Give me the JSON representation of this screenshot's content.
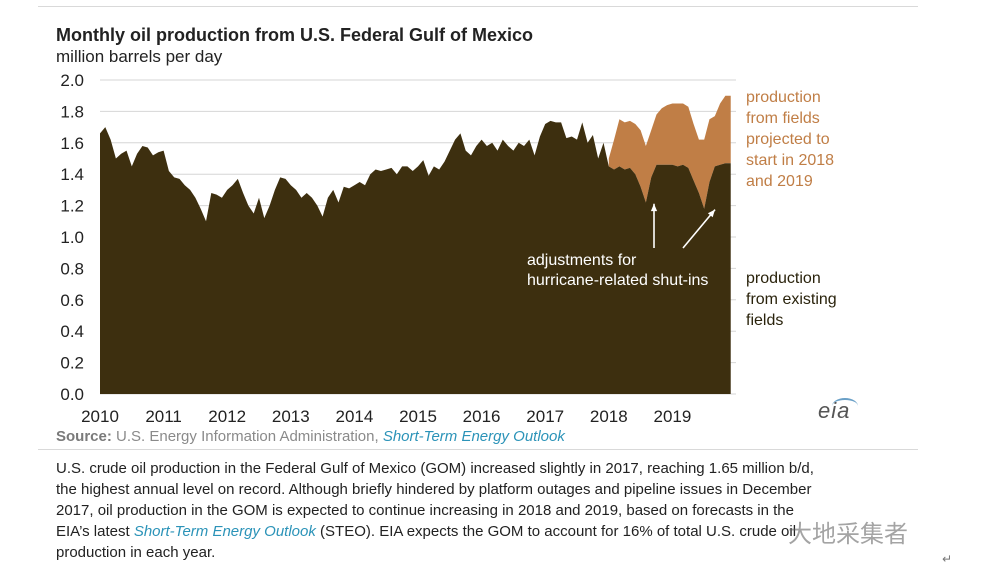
{
  "chart_data": {
    "type": "area",
    "title": "Monthly oil production from U.S. Federal Gulf of Mexico",
    "subtitle": "million barrels per day",
    "xlabel": "",
    "ylabel": "",
    "xlim": [
      2010,
      2020
    ],
    "ylim": [
      0,
      2.0
    ],
    "yticks": [
      "0.0",
      "0.2",
      "0.4",
      "0.6",
      "0.8",
      "1.0",
      "1.2",
      "1.4",
      "1.6",
      "1.8",
      "2.0"
    ],
    "xticks": [
      "2010",
      "2011",
      "2012",
      "2013",
      "2014",
      "2015",
      "2016",
      "2017",
      "2018",
      "2019"
    ],
    "grid": true,
    "x": [
      2010.0,
      2010.083,
      2010.167,
      2010.25,
      2010.333,
      2010.417,
      2010.5,
      2010.583,
      2010.667,
      2010.75,
      2010.833,
      2010.917,
      2011.0,
      2011.083,
      2011.167,
      2011.25,
      2011.333,
      2011.417,
      2011.5,
      2011.583,
      2011.667,
      2011.75,
      2011.833,
      2011.917,
      2012.0,
      2012.083,
      2012.167,
      2012.25,
      2012.333,
      2012.417,
      2012.5,
      2012.583,
      2012.667,
      2012.75,
      2012.833,
      2012.917,
      2013.0,
      2013.083,
      2013.167,
      2013.25,
      2013.333,
      2013.417,
      2013.5,
      2013.583,
      2013.667,
      2013.75,
      2013.833,
      2013.917,
      2014.0,
      2014.083,
      2014.167,
      2014.25,
      2014.333,
      2014.417,
      2014.5,
      2014.583,
      2014.667,
      2014.75,
      2014.833,
      2014.917,
      2015.0,
      2015.083,
      2015.167,
      2015.25,
      2015.333,
      2015.417,
      2015.5,
      2015.583,
      2015.667,
      2015.75,
      2015.833,
      2015.917,
      2016.0,
      2016.083,
      2016.167,
      2016.25,
      2016.333,
      2016.417,
      2016.5,
      2016.583,
      2016.667,
      2016.75,
      2016.833,
      2016.917,
      2017.0,
      2017.083,
      2017.167,
      2017.25,
      2017.333,
      2017.417,
      2017.5,
      2017.583,
      2017.667,
      2017.75,
      2017.833,
      2017.917,
      2018.0,
      2018.083,
      2018.167,
      2018.25,
      2018.333,
      2018.417,
      2018.5,
      2018.583,
      2018.667,
      2018.75,
      2018.833,
      2018.917,
      2019.0,
      2019.083,
      2019.167,
      2019.25,
      2019.333,
      2019.417,
      2019.5,
      2019.583,
      2019.667,
      2019.75,
      2019.833,
      2019.917
    ],
    "series": [
      {
        "name": "production from existing fields",
        "color": "#3d2f0f",
        "values": [
          1.66,
          1.7,
          1.62,
          1.5,
          1.53,
          1.55,
          1.45,
          1.53,
          1.58,
          1.57,
          1.52,
          1.54,
          1.55,
          1.42,
          1.38,
          1.37,
          1.33,
          1.3,
          1.25,
          1.18,
          1.1,
          1.28,
          1.27,
          1.25,
          1.3,
          1.33,
          1.37,
          1.28,
          1.2,
          1.15,
          1.25,
          1.12,
          1.2,
          1.3,
          1.38,
          1.37,
          1.33,
          1.3,
          1.25,
          1.28,
          1.25,
          1.2,
          1.13,
          1.25,
          1.3,
          1.22,
          1.32,
          1.31,
          1.33,
          1.35,
          1.33,
          1.4,
          1.43,
          1.42,
          1.43,
          1.44,
          1.4,
          1.45,
          1.45,
          1.42,
          1.45,
          1.49,
          1.39,
          1.45,
          1.43,
          1.48,
          1.55,
          1.62,
          1.66,
          1.55,
          1.52,
          1.58,
          1.62,
          1.58,
          1.6,
          1.55,
          1.62,
          1.58,
          1.55,
          1.6,
          1.58,
          1.62,
          1.52,
          1.64,
          1.72,
          1.74,
          1.73,
          1.73,
          1.63,
          1.64,
          1.62,
          1.73,
          1.6,
          1.65,
          1.5,
          1.6,
          1.45,
          1.43,
          1.45,
          1.43,
          1.44,
          1.4,
          1.32,
          1.22,
          1.38,
          1.46,
          1.46,
          1.46,
          1.46,
          1.45,
          1.46,
          1.44,
          1.36,
          1.28,
          1.18,
          1.35,
          1.45,
          1.46,
          1.47,
          1.47
        ]
      },
      {
        "name": "production from fields projected to start in 2018 and 2019",
        "color": "#c07e46",
        "values": [
          null,
          null,
          null,
          null,
          null,
          null,
          null,
          null,
          null,
          null,
          null,
          null,
          null,
          null,
          null,
          null,
          null,
          null,
          null,
          null,
          null,
          null,
          null,
          null,
          null,
          null,
          null,
          null,
          null,
          null,
          null,
          null,
          null,
          null,
          null,
          null,
          null,
          null,
          null,
          null,
          null,
          null,
          null,
          null,
          null,
          null,
          null,
          null,
          null,
          null,
          null,
          null,
          null,
          null,
          null,
          null,
          null,
          null,
          null,
          null,
          null,
          null,
          null,
          null,
          null,
          null,
          null,
          null,
          null,
          null,
          null,
          null,
          null,
          null,
          null,
          null,
          null,
          null,
          null,
          null,
          null,
          null,
          null,
          null,
          null,
          null,
          null,
          null,
          null,
          null,
          null,
          null,
          null,
          null,
          null,
          null,
          1.5,
          1.62,
          1.75,
          1.73,
          1.74,
          1.72,
          1.68,
          1.58,
          1.68,
          1.78,
          1.82,
          1.84,
          1.85,
          1.85,
          1.85,
          1.83,
          1.72,
          1.62,
          1.62,
          1.75,
          1.77,
          1.85,
          1.9,
          1.9
        ]
      }
    ],
    "legend_labels": {
      "projected": [
        "production",
        "from fields",
        "projected to",
        "start in 2018",
        "and 2019"
      ],
      "existing": [
        "production",
        "from existing",
        "fields"
      ]
    },
    "annotation": {
      "lines": [
        "adjustments for",
        "hurricane-related shut-ins"
      ],
      "targets": [
        2018.667,
        2019.667
      ]
    }
  },
  "colors": {
    "existing": "#3d2f0f",
    "projected": "#c07e46",
    "link": "#2b93b8",
    "grid": "#d6d6d6"
  },
  "source": {
    "label": "Source:",
    "text": "U.S. Energy Information Administration,",
    "link_text": "Short-Term Energy Outlook"
  },
  "logo": {
    "text": "eia"
  },
  "caption": {
    "line1": "U.S. crude oil production in the Federal Gulf of Mexico (GOM) increased slightly in 2017, reaching 1.65 million b/d,",
    "line2": "the highest annual level on record. Although briefly hindered by platform outages and pipeline issues in December",
    "line3": "2017, oil production in the GOM is expected to continue increasing in 2018 and 2019, based on forecasts in the",
    "line4_pre": "EIA’s latest",
    "line4_link": "Short-Term Energy Outlook",
    "line4_post": "(STEO). EIA expects the GOM to account for 16% of total U.S. crude oil",
    "line5": "production in each year."
  },
  "watermark": {
    "text": "大地采集者"
  }
}
